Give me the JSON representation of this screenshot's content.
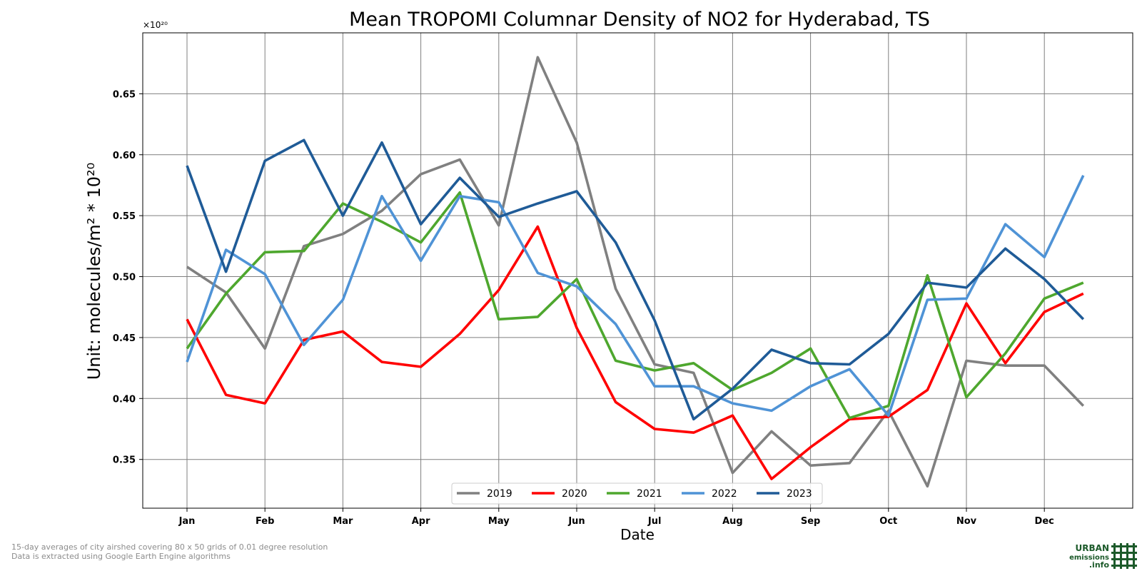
{
  "chart_data": {
    "type": "line",
    "title": "Mean TROPOMI Columnar Density of NO2 for Hyderabad, TS",
    "xlabel": "Date",
    "ylabel": "Unit: molecules/m² * 10²⁰",
    "scale_note": "×10²⁰",
    "ylim": [
      0.31,
      0.7
    ],
    "yticks": [
      "0.35",
      "0.40",
      "0.45",
      "0.50",
      "0.55",
      "0.60",
      "0.65"
    ],
    "xticks": [
      "Jan",
      "Feb",
      "Mar",
      "Apr",
      "May",
      "Jun",
      "Jul",
      "Aug",
      "Sep",
      "Oct",
      "Nov",
      "Dec"
    ],
    "grid": true,
    "legend_position": "bottom-center",
    "series": [
      {
        "name": "2019",
        "color": "#808080",
        "values": [
          0.508,
          0.487,
          0.441,
          0.525,
          0.535,
          0.554,
          0.584,
          0.596,
          0.542,
          0.68,
          0.61,
          0.49,
          0.428,
          0.421,
          0.339,
          0.373,
          0.345,
          0.347,
          0.39,
          0.328,
          0.431,
          0.427,
          0.427,
          0.394
        ]
      },
      {
        "name": "2020",
        "color": "#ff0000",
        "values": [
          0.465,
          0.403,
          0.396,
          0.448,
          0.455,
          0.43,
          0.426,
          0.453,
          0.489,
          0.541,
          0.458,
          0.397,
          0.375,
          0.372,
          0.386,
          0.334,
          0.36,
          0.383,
          0.385,
          0.407,
          0.478,
          0.429,
          0.471,
          0.486
        ]
      },
      {
        "name": "2021",
        "color": "#4ea72e",
        "values": [
          0.441,
          0.486,
          0.52,
          0.521,
          0.56,
          0.545,
          0.528,
          0.569,
          0.465,
          0.467,
          0.498,
          0.431,
          0.423,
          0.429,
          0.407,
          0.421,
          0.441,
          0.384,
          0.394,
          0.501,
          0.401,
          0.437,
          0.482,
          0.495
        ]
      },
      {
        "name": "2022",
        "color": "#4f93d6",
        "values": [
          0.43,
          0.522,
          0.502,
          0.444,
          0.481,
          0.566,
          0.513,
          0.566,
          0.561,
          0.503,
          0.492,
          0.461,
          0.41,
          0.41,
          0.396,
          0.39,
          0.41,
          0.424,
          0.386,
          0.481,
          0.482,
          0.543,
          0.516,
          0.583
        ]
      },
      {
        "name": "2023",
        "color": "#1f5b97",
        "values": [
          0.591,
          0.504,
          0.595,
          0.612,
          0.55,
          0.61,
          0.543,
          0.581,
          0.549,
          0.56,
          0.57,
          0.528,
          0.464,
          0.383,
          0.408,
          0.44,
          0.429,
          0.428,
          0.453,
          0.495,
          0.491,
          0.523,
          0.498,
          0.465
        ]
      }
    ]
  },
  "footnotes": {
    "line1": "15-day averages of city airshed covering 80 x 50 grids of 0.01 degree resolution",
    "line2": "Data is extracted using Google Earth Engine algorithms"
  },
  "logo": {
    "line1": "URBAN",
    "line2": "emissions",
    "line3": ".info",
    "color": "#1c5a2a"
  }
}
